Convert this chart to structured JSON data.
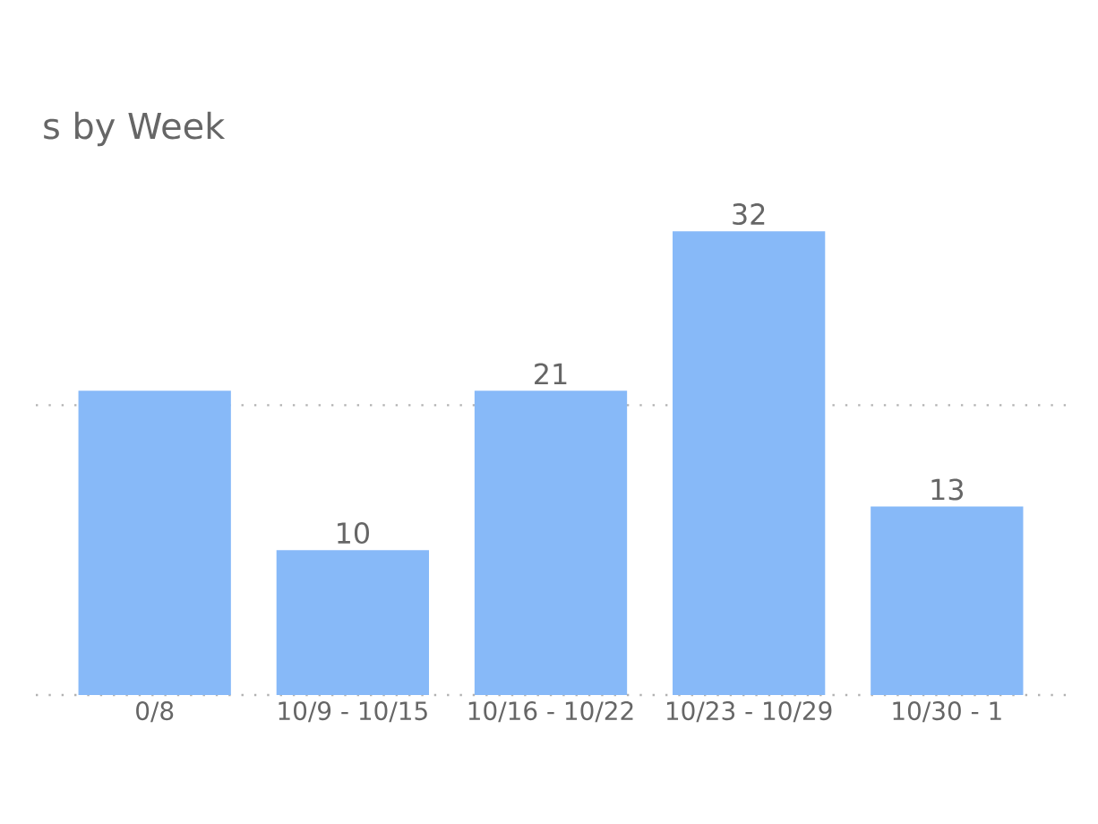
{
  "chart_data": {
    "type": "bar",
    "title": "s by Week",
    "categories": [
      "0/8",
      "10/9 - 10/15",
      "10/16 - 10/22",
      "10/23 - 10/29",
      "10/30 - 1"
    ],
    "values": [
      21,
      10,
      21,
      32,
      13
    ],
    "value_labels": [
      null,
      "10",
      "21",
      "32",
      "13"
    ],
    "color": "#87b9f8",
    "ref_lines": [
      {
        "axis": "y",
        "value": 0,
        "color": "#b2b2b2",
        "line_style": "dotted"
      },
      {
        "axis": "y",
        "value": 20,
        "color": "#b2b2b2",
        "line_style": "dotted"
      }
    ],
    "tick_labels": "x"
  }
}
